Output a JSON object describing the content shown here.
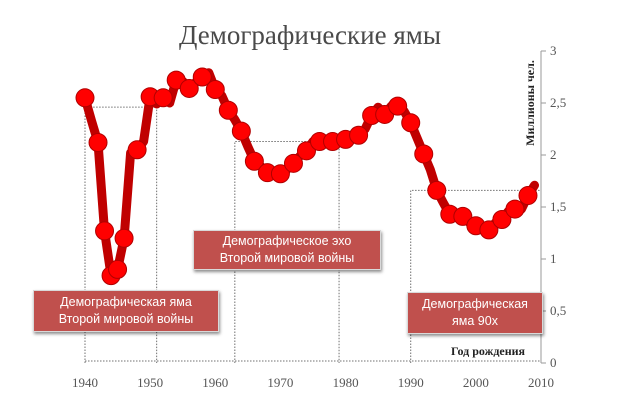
{
  "chart_data": {
    "type": "line",
    "title": "Демографические ямы",
    "ylabel": "Миллионы чел.",
    "xlabel": "Год рождения",
    "xlim": [
      1940,
      2010
    ],
    "ylim": [
      0,
      3
    ],
    "x_ticks": [
      "1940",
      "1950",
      "1960",
      "1970",
      "1980",
      "1990",
      "2000",
      "2010"
    ],
    "y_ticks": [
      "0",
      "0,5",
      "1",
      "1,5",
      "2",
      "2,5",
      "3"
    ],
    "series": [
      {
        "color": "#c00000",
        "marker_color": "#ff0000",
        "x": [
          1940,
          1941,
          1942,
          1943,
          1944,
          1945,
          1946,
          1947,
          1948,
          1949,
          1950,
          1951,
          1952,
          1953,
          1954,
          1955,
          1956,
          1957,
          1958,
          1959,
          1960,
          1961,
          1962,
          1963,
          1964,
          1965,
          1966,
          1967,
          1968,
          1969,
          1970,
          1971,
          1972,
          1973,
          1974,
          1975,
          1976,
          1977,
          1978,
          1979,
          1980,
          1981,
          1982,
          1983,
          1984,
          1985,
          1986,
          1987,
          1988,
          1989,
          1990,
          1991,
          1992,
          1993,
          1994,
          1995,
          1996,
          1997,
          1998,
          1999,
          2000,
          2001,
          2002,
          2003,
          2004,
          2005,
          2006,
          2007,
          2008,
          2009
        ],
        "values": [
          2.55,
          2.33,
          2.12,
          1.27,
          0.84,
          0.9,
          1.2,
          2.02,
          2.05,
          2.13,
          2.56,
          2.49,
          2.55,
          2.5,
          2.72,
          2.71,
          2.64,
          2.7,
          2.75,
          2.79,
          2.63,
          2.57,
          2.43,
          2.34,
          2.23,
          2.08,
          1.94,
          1.89,
          1.83,
          1.82,
          1.82,
          1.86,
          1.92,
          1.99,
          2.04,
          2.13,
          2.13,
          2.15,
          2.13,
          2.13,
          2.15,
          2.16,
          2.19,
          2.25,
          2.38,
          2.46,
          2.39,
          2.47,
          2.47,
          2.42,
          2.31,
          2.16,
          2.01,
          1.86,
          1.66,
          1.54,
          1.43,
          1.4,
          1.41,
          1.35,
          1.32,
          1.3,
          1.28,
          1.35,
          1.38,
          1.46,
          1.48,
          1.48,
          1.61,
          1.71
        ]
      }
    ],
    "annotations": [
      {
        "text_lines": [
          "Демографическая яма",
          "Второй мировой войны"
        ],
        "x_range": [
          1940,
          1951
        ]
      },
      {
        "text_lines": [
          "Демографическое эхо",
          "Второй мировой войны"
        ],
        "x_range": [
          1963,
          1979
        ]
      },
      {
        "text_lines": [
          "Демографическая",
          "яма 90х"
        ],
        "x_range": [
          1990,
          2010
        ]
      }
    ],
    "grid": false,
    "legend": "none"
  }
}
